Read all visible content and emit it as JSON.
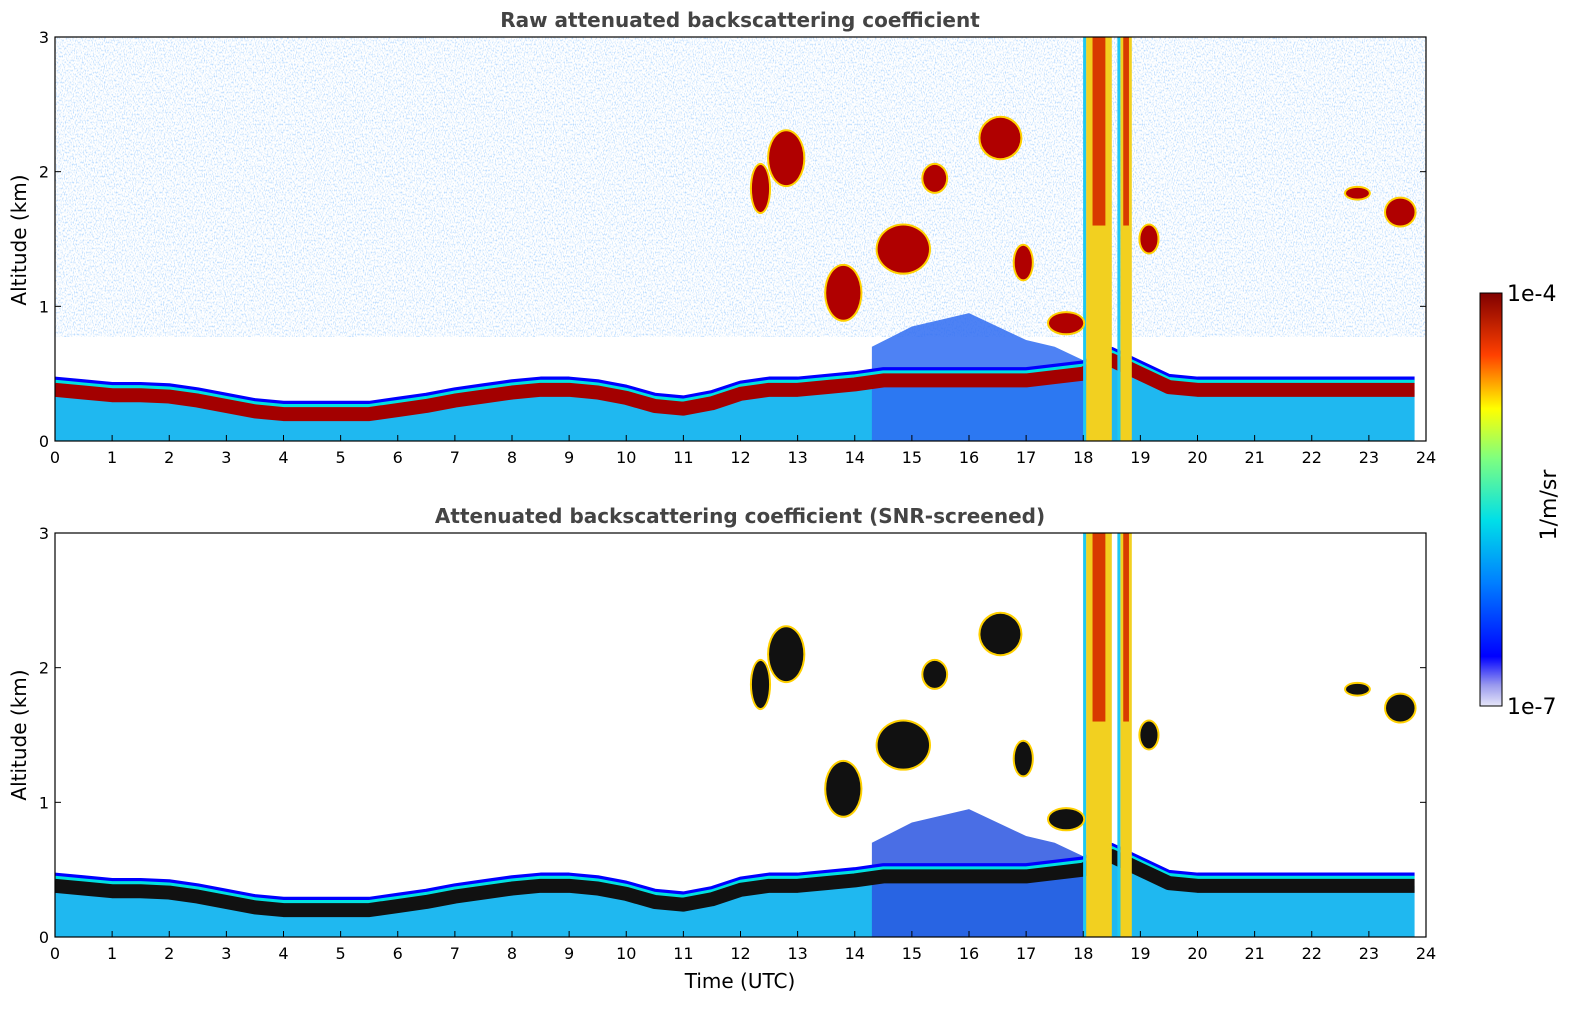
{
  "chart_data": [
    {
      "type": "heatmap",
      "title": "Raw attenuated backscattering coefficient",
      "xlabel": "",
      "ylabel": "Altitude (km)",
      "xlim": [
        0,
        24
      ],
      "ylim": [
        0,
        3
      ],
      "x_ticks": [
        "0",
        "1",
        "2",
        "3",
        "4",
        "5",
        "6",
        "7",
        "8",
        "9",
        "10",
        "11",
        "12",
        "13",
        "14",
        "15",
        "16",
        "17",
        "18",
        "19",
        "20",
        "21",
        "22",
        "23",
        "24"
      ],
      "y_ticks": [
        "0",
        "1",
        "2",
        "3"
      ],
      "grid": false,
      "screened": false
    },
    {
      "type": "heatmap",
      "title": "Attenuated backscattering coefficient (SNR-screened)",
      "xlabel": "Time (UTC)",
      "ylabel": "Altitude (km)",
      "xlim": [
        0,
        24
      ],
      "ylim": [
        0,
        3
      ],
      "x_ticks": [
        "0",
        "1",
        "2",
        "3",
        "4",
        "5",
        "6",
        "7",
        "8",
        "9",
        "10",
        "11",
        "12",
        "13",
        "14",
        "15",
        "16",
        "17",
        "18",
        "19",
        "20",
        "21",
        "22",
        "23",
        "24"
      ],
      "y_ticks": [
        "0",
        "1",
        "2",
        "3"
      ],
      "grid": false,
      "screened": true
    }
  ],
  "colorbar": {
    "label": "1/m/sr",
    "max_label": "1e-4",
    "min_label": "1e-7",
    "colormap": "jet",
    "scale": "log",
    "range": [
      1e-07,
      0.0001
    ]
  },
  "features": {
    "boundary_layer_top_km": [
      [
        0,
        0.38
      ],
      [
        0.5,
        0.36
      ],
      [
        1,
        0.34
      ],
      [
        1.5,
        0.34
      ],
      [
        2,
        0.33
      ],
      [
        2.5,
        0.3
      ],
      [
        3,
        0.26
      ],
      [
        3.5,
        0.22
      ],
      [
        4,
        0.2
      ],
      [
        4.5,
        0.2
      ],
      [
        5,
        0.2
      ],
      [
        5.5,
        0.2
      ],
      [
        6,
        0.23
      ],
      [
        6.5,
        0.26
      ],
      [
        7,
        0.3
      ],
      [
        7.5,
        0.33
      ],
      [
        8,
        0.36
      ],
      [
        8.5,
        0.38
      ],
      [
        9,
        0.38
      ],
      [
        9.5,
        0.36
      ],
      [
        10,
        0.32
      ],
      [
        10.5,
        0.26
      ],
      [
        11,
        0.24
      ],
      [
        11.5,
        0.28
      ],
      [
        12,
        0.35
      ],
      [
        12.5,
        0.38
      ],
      [
        13,
        0.38
      ],
      [
        13.5,
        0.4
      ],
      [
        14,
        0.42
      ],
      [
        14.5,
        0.45
      ],
      [
        15,
        0.45
      ],
      [
        16,
        0.45
      ],
      [
        17,
        0.45
      ],
      [
        18,
        0.5
      ],
      [
        18.5,
        0.6
      ],
      [
        19,
        0.5
      ],
      [
        19.5,
        0.4
      ],
      [
        20,
        0.38
      ],
      [
        21,
        0.38
      ],
      [
        22,
        0.38
      ],
      [
        23,
        0.38
      ],
      [
        23.8,
        0.38
      ]
    ],
    "clouds": [
      {
        "t0": 12.2,
        "t1": 12.5,
        "z0": 1.7,
        "z1": 2.05
      },
      {
        "t0": 12.5,
        "t1": 13.1,
        "z0": 1.9,
        "z1": 2.3
      },
      {
        "t0": 13.5,
        "t1": 14.1,
        "z0": 0.9,
        "z1": 1.3
      },
      {
        "t0": 14.4,
        "t1": 15.3,
        "z0": 1.25,
        "z1": 1.6
      },
      {
        "t0": 15.2,
        "t1": 15.6,
        "z0": 1.85,
        "z1": 2.05
      },
      {
        "t0": 16.2,
        "t1": 16.9,
        "z0": 2.1,
        "z1": 2.4
      },
      {
        "t0": 16.8,
        "t1": 17.1,
        "z0": 1.2,
        "z1": 1.45
      },
      {
        "t0": 17.4,
        "t1": 18.0,
        "z0": 0.8,
        "z1": 0.95
      },
      {
        "t0": 19.0,
        "t1": 19.3,
        "z0": 1.4,
        "z1": 1.6
      },
      {
        "t0": 22.6,
        "t1": 23.0,
        "z0": 1.8,
        "z1": 1.88
      },
      {
        "t0": 23.3,
        "t1": 23.8,
        "z0": 1.6,
        "z1": 1.8
      }
    ],
    "precipitation_columns": [
      {
        "t0": 18.05,
        "t1": 18.5,
        "z0": 0,
        "z1": 3
      },
      {
        "t0": 18.65,
        "t1": 18.85,
        "z0": 0,
        "z1": 3
      }
    ]
  },
  "colors": {
    "background": "#ffffff",
    "title": "#444444",
    "axis": "#000000"
  }
}
